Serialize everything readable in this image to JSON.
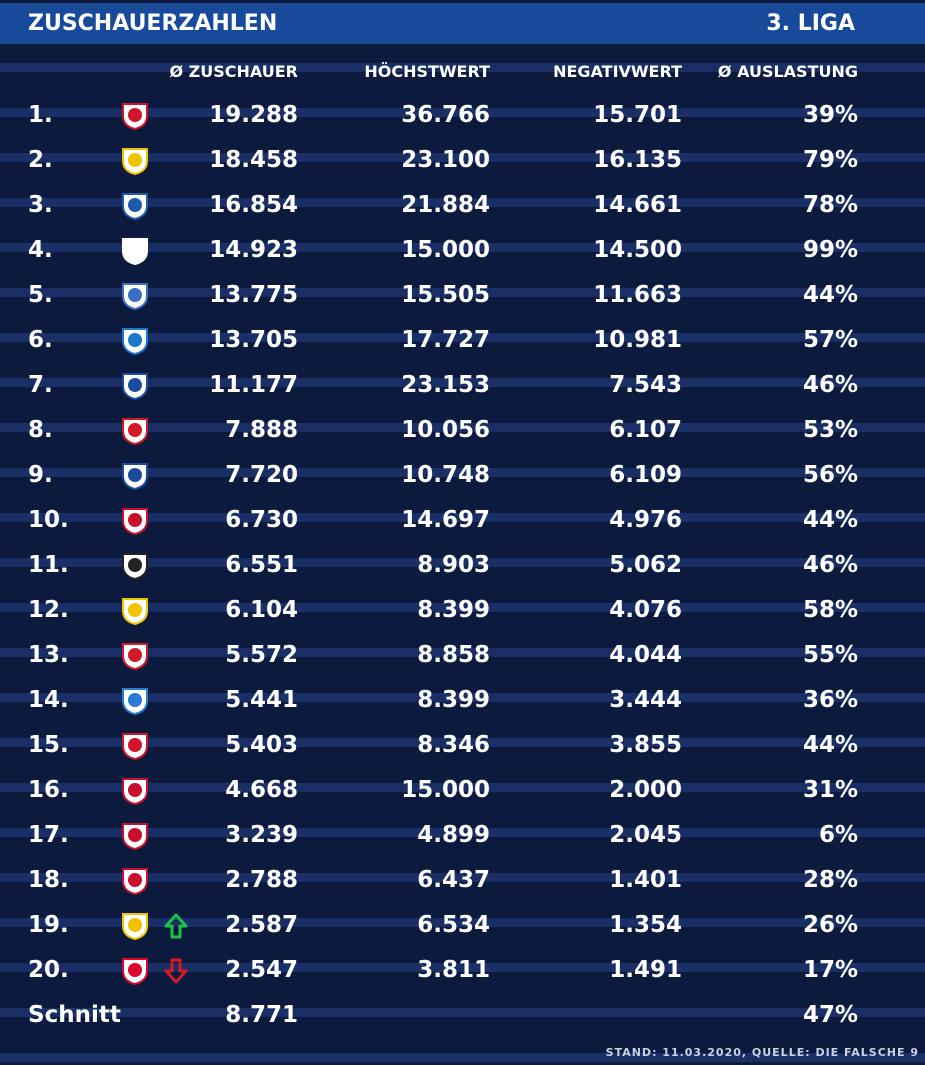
{
  "header": {
    "title": "ZUSCHAUERZAHLEN",
    "league": "3. LIGA"
  },
  "columns": [
    "Ø ZUSCHAUER",
    "HÖCHSTWERT",
    "NEGATIVWERT",
    "Ø AUSLASTUNG"
  ],
  "rows": [
    {
      "rank": "1.",
      "avg": "19.288",
      "max": "36.766",
      "min": "15.701",
      "util": "39%",
      "logo": "crest-fck",
      "color": "#d1142a"
    },
    {
      "rank": "2.",
      "avg": "18.458",
      "max": "23.100",
      "min": "16.135",
      "util": "79%",
      "logo": "crest-braunschweig",
      "color": "#f2c200"
    },
    {
      "rank": "3.",
      "avg": "16.854",
      "max": "21.884",
      "min": "14.661",
      "util": "78%",
      "logo": "crest-magdeburg",
      "color": "#1c5cae"
    },
    {
      "rank": "4.",
      "avg": "14.923",
      "max": "15.000",
      "min": "14.500",
      "util": "99%",
      "logo": "crest-1860",
      "color": "#ffffff"
    },
    {
      "rank": "5.",
      "avg": "13.775",
      "max": "15.505",
      "min": "11.663",
      "util": "44%",
      "logo": "crest-duisburg",
      "color": "#3b6fc4"
    },
    {
      "rank": "6.",
      "avg": "13.705",
      "max": "17.727",
      "min": "10.981",
      "util": "57%",
      "logo": "crest-rostock",
      "color": "#1c78c8"
    },
    {
      "rank": "7.",
      "avg": "11.177",
      "max": "23.153",
      "min": "7.543",
      "util": "46%",
      "logo": "crest-mannheim",
      "color": "#1c4da0"
    },
    {
      "rank": "8.",
      "avg": "7.888",
      "max": "10.056",
      "min": "6.107",
      "util": "53%",
      "logo": "crest-halle",
      "color": "#d11a23"
    },
    {
      "rank": "9.",
      "avg": "7.720",
      "max": "10.748",
      "min": "6.109",
      "util": "56%",
      "logo": "crest-meppen",
      "color": "#1a4c9c"
    },
    {
      "rank": "10.",
      "avg": "6.730",
      "max": "14.697",
      "min": "4.976",
      "util": "44%",
      "logo": "crest-ingolstadt",
      "color": "#c8102e"
    },
    {
      "rank": "11.",
      "avg": "6.551",
      "max": "8.903",
      "min": "5.062",
      "util": "46%",
      "logo": "crest-muenster",
      "color": "#222222"
    },
    {
      "rank": "12.",
      "avg": "6.104",
      "max": "8.399",
      "min": "4.076",
      "util": "58%",
      "logo": "crest-jena",
      "color": "#f3c300"
    },
    {
      "rank": "13.",
      "avg": "5.572",
      "max": "8.858",
      "min": "4.044",
      "util": "55%",
      "logo": "crest-zwickau",
      "color": "#d11a2a"
    },
    {
      "rank": "14.",
      "avg": "5.441",
      "max": "8.399",
      "min": "3.444",
      "util": "36%",
      "logo": "crest-chemnitz",
      "color": "#2a7bd4"
    },
    {
      "rank": "15.",
      "avg": "5.403",
      "max": "8.346",
      "min": "3.855",
      "util": "44%",
      "logo": "crest-wuerzburg",
      "color": "#d1142a"
    },
    {
      "rank": "16.",
      "avg": "4.668",
      "max": "15.000",
      "min": "2.000",
      "util": "31%",
      "logo": "crest-unterhaching",
      "color": "#c8102e"
    },
    {
      "rank": "17.",
      "avg": "3.239",
      "max": "4.899",
      "min": "2.045",
      "util": "6%",
      "logo": "crest-uerdingen",
      "color": "#c8102e"
    },
    {
      "rank": "18.",
      "avg": "2.788",
      "max": "6.437",
      "min": "1.401",
      "util": "28%",
      "logo": "crest-viktoria",
      "color": "#c8102e"
    },
    {
      "rank": "19.",
      "avg": "2.587",
      "max": "6.534",
      "min": "1.354",
      "util": "26%",
      "logo": "crest-grossaspach",
      "color": "#f2c200",
      "arrow": "up",
      "arrow_color": "#1ec24b"
    },
    {
      "rank": "20.",
      "avg": "2.547",
      "max": "3.811",
      "min": "1.491",
      "util": "17%",
      "logo": "crest-bayern",
      "color": "#dc052d",
      "arrow": "down",
      "arrow_color": "#d11a23"
    }
  ],
  "summary": {
    "label": "Schnitt",
    "avg": "8.771",
    "util": "47%"
  },
  "footer": "STAND: 11.03.2020, QUELLE: DIE FALSCHE 9",
  "chart_data": {
    "type": "table",
    "title": "ZUSCHAUERZAHLEN",
    "subtitle": "3. LIGA",
    "columns": [
      "Ø ZUSCHAUER",
      "HÖCHSTWERT",
      "NEGATIVWERT",
      "Ø AUSLASTUNG"
    ],
    "categories": [
      "1.",
      "2.",
      "3.",
      "4.",
      "5.",
      "6.",
      "7.",
      "8.",
      "9.",
      "10.",
      "11.",
      "12.",
      "13.",
      "14.",
      "15.",
      "16.",
      "17.",
      "18.",
      "19.",
      "20."
    ],
    "series": [
      {
        "name": "Ø ZUSCHAUER",
        "values": [
          19288,
          18458,
          16854,
          14923,
          13775,
          13705,
          11177,
          7888,
          7720,
          6730,
          6551,
          6104,
          5572,
          5441,
          5403,
          4668,
          3239,
          2788,
          2587,
          2547
        ]
      },
      {
        "name": "HÖCHSTWERT",
        "values": [
          36766,
          23100,
          21884,
          15000,
          15505,
          17727,
          23153,
          10056,
          10748,
          14697,
          8903,
          8399,
          8858,
          8399,
          8346,
          15000,
          4899,
          6437,
          6534,
          3811
        ]
      },
      {
        "name": "NEGATIVWERT",
        "values": [
          15701,
          16135,
          14661,
          14500,
          11663,
          10981,
          7543,
          6107,
          6109,
          4976,
          5062,
          4076,
          4044,
          3444,
          3855,
          2000,
          2045,
          1401,
          1354,
          1491
        ]
      },
      {
        "name": "Ø AUSLASTUNG",
        "values": [
          39,
          79,
          78,
          99,
          44,
          57,
          46,
          53,
          56,
          44,
          46,
          58,
          55,
          36,
          44,
          31,
          6,
          28,
          26,
          17
        ]
      }
    ]
  }
}
